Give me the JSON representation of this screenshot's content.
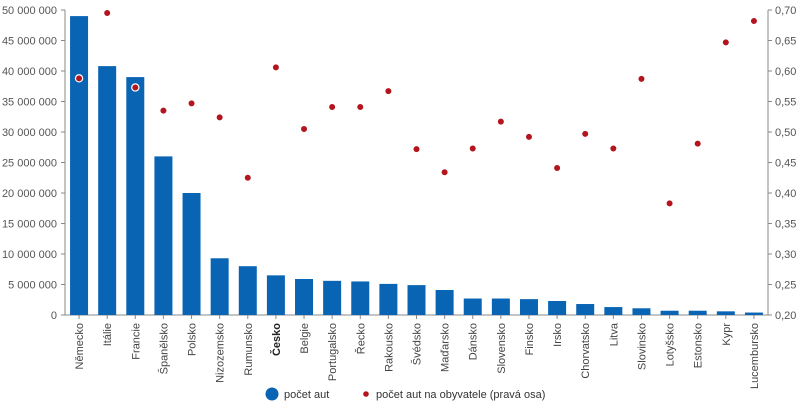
{
  "chart_data": {
    "type": "bar",
    "categories": [
      "Německo",
      "Itálie",
      "Francie",
      "Španělsko",
      "Polsko",
      "Nizozemsko",
      "Rumunsko",
      "Česko",
      "Belgie",
      "Portugalsko",
      "Řecko",
      "Rakousko",
      "Švédsko",
      "Maďarsko",
      "Dánsko",
      "Slovensko",
      "Finsko",
      "Irsko",
      "Chorvatsko",
      "Litva",
      "Slovinsko",
      "Lotyšsko",
      "Estonsko",
      "Kypr",
      "Lucembursko"
    ],
    "highlight_category": "Česko",
    "series": [
      {
        "name": "počet aut",
        "type": "bar",
        "axis": "left",
        "color": "#0a64b4",
        "values": [
          49000000,
          40800000,
          39000000,
          26000000,
          20000000,
          9300000,
          8000000,
          6500000,
          5900000,
          5600000,
          5500000,
          5100000,
          4900000,
          4100000,
          2700000,
          2700000,
          2600000,
          2300000,
          1800000,
          1300000,
          1100000,
          700000,
          700000,
          600000,
          400000
        ]
      },
      {
        "name": "počet aut na obyvatele (pravá osa)",
        "type": "scatter",
        "axis": "right",
        "color": "#b4141e",
        "values": [
          0.588,
          0.695,
          0.573,
          0.535,
          0.547,
          0.524,
          0.425,
          0.606,
          0.505,
          0.541,
          0.541,
          0.567,
          0.472,
          0.434,
          0.473,
          0.517,
          0.492,
          0.441,
          0.497,
          0.473,
          0.587,
          0.383,
          0.481,
          0.647,
          0.682
        ]
      }
    ],
    "y_left": {
      "min": 0,
      "max": 50000000,
      "ticks": [
        "0",
        "5 000 000",
        "10 000 000",
        "15 000 000",
        "20 000 000",
        "25 000 000",
        "30 000 000",
        "35 000 000",
        "40 000 000",
        "45 000 000",
        "50 000 000"
      ]
    },
    "y_right": {
      "min": 0.2,
      "max": 0.7,
      "ticks": [
        "0,20",
        "0,25",
        "0,30",
        "0,35",
        "0,40",
        "0,45",
        "0,50",
        "0,55",
        "0,60",
        "0,65",
        "0,70"
      ]
    },
    "grid": false,
    "legend_position": "bottom"
  }
}
